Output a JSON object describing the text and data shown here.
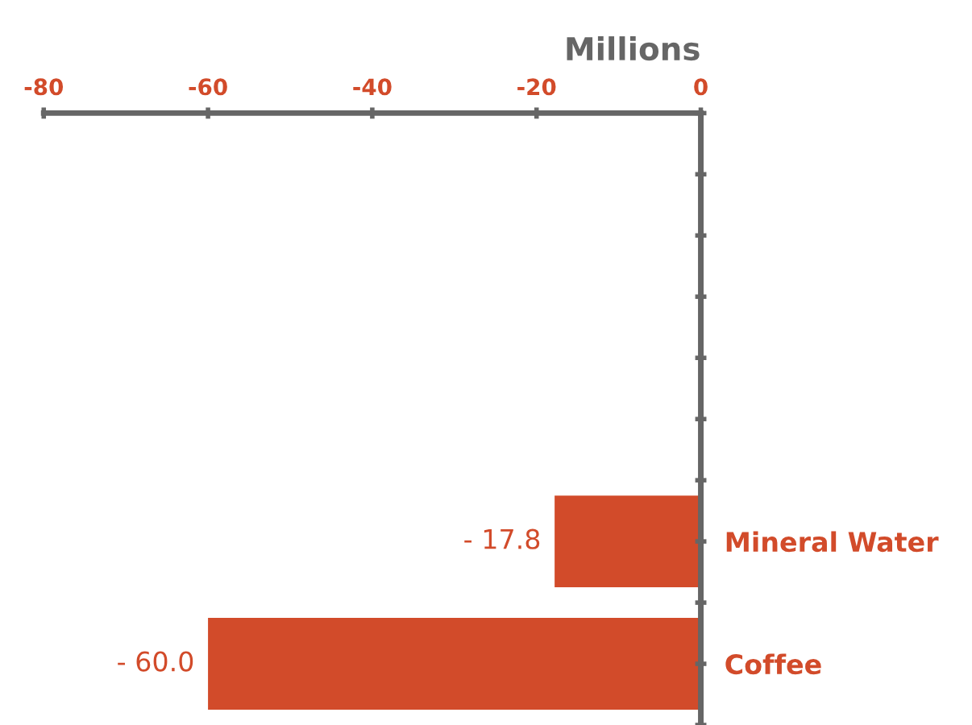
{
  "chart_data": {
    "type": "bar",
    "orientation": "horizontal",
    "xlabel": "Millions",
    "categories": [
      null,
      null,
      null,
      "Mineral Water",
      "Coffee"
    ],
    "values": [
      null,
      null,
      null,
      -17.8,
      -60.0
    ],
    "value_labels": [
      null,
      null,
      null,
      "- 17.8",
      "- 60.0"
    ],
    "color": "#d24b2a",
    "xlim": [
      -80,
      0
    ],
    "xticks": [
      -80,
      -60,
      -40,
      -20,
      0
    ],
    "grid": false,
    "legend": false
  }
}
